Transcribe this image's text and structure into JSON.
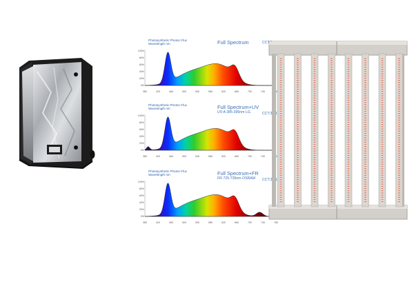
{
  "panels": [
    {
      "title_line1": "Photosynthetic Photon Flux",
      "title_line2": "Wavelength nm",
      "name": "Full Spectrum",
      "subtitle": "",
      "cct": "CCT:3",
      "uv": false,
      "fr": false
    },
    {
      "title_line1": "Photosynthetic Photon Flux",
      "title_line2": "Wavelength nm",
      "name": "Full Spectrum+UV",
      "subtitle": "UV-A 385-395nm LG",
      "cct": "CCT:3  4100K",
      "uv": true,
      "fr": false
    },
    {
      "title_line1": "Photosynthetic Photon Flux",
      "title_line2": "Wavelength nm",
      "name": "Full Spectrum+FR",
      "subtitle": "FR 725-735nm OSRAM",
      "cct": "CCT:3  4100K",
      "uv": false,
      "fr": true
    }
  ],
  "axis": {
    "y_ticks": [
      "100%",
      "80%",
      "60%",
      "40%",
      "20%",
      "0%"
    ],
    "x_ticks": [
      "380",
      "420",
      "460",
      "500",
      "540",
      "580",
      "620",
      "660",
      "700",
      "740",
      "780"
    ]
  },
  "colors": {
    "tent_frame": "#1c1c1c",
    "tent_foil": "#c9ccd0",
    "fixture_frame": "#c7c3be",
    "led_strip": "#e9dcd6",
    "led_dot": "#d8806a",
    "title_blue": "#3b6db5"
  }
}
